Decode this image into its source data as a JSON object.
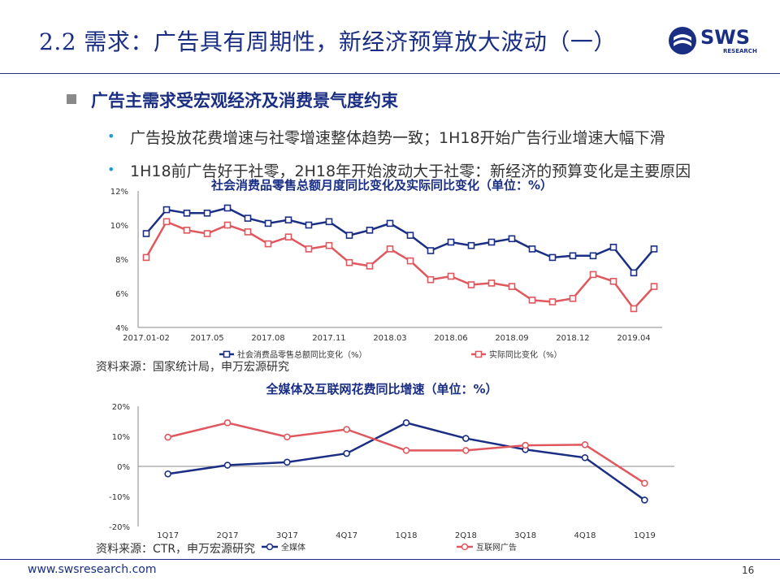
{
  "header": {
    "title": "2.2 需求：广告具有周期性，新经济预算放大波动（一）",
    "logo_text": "SWS",
    "logo_subtext": "RESEARCH"
  },
  "main": {
    "heading": "广告主需求受宏观经济及消费景气度约束",
    "bullets": [
      "广告投放花费增速与社零增速整体趋势一致；1H18开始广告行业增速大幅下滑",
      "1H18前广告好于社零，2H18年开始波动大于社零：新经济的预算变化是主要原因"
    ],
    "bullet_marker": "•",
    "captions": [
      "资料来源：国家统计局，申万宏源研究",
      "资料来源：CTR，申万宏源研究"
    ]
  },
  "footer": {
    "url": "www.swsresearch.com",
    "page": "16"
  },
  "colors": {
    "brand": "#1a2f84",
    "series_blue": "#1a2f84",
    "series_red": "#e0575d",
    "accent": "#1e9be0"
  },
  "chart_data": [
    {
      "type": "line",
      "title": "社会消费品零售总额月度同比变化及实际同比变化（单位：%）",
      "ylim": [
        4,
        12
      ],
      "yticks": [
        "4%",
        "6%",
        "8%",
        "10%",
        "12%"
      ],
      "ytick_values": [
        4,
        6,
        8,
        10,
        12
      ],
      "xtick_labels": [
        "2017.01-02",
        "2017.05",
        "2017.08",
        "2017.11",
        "2018.03",
        "2018.06",
        "2018.09",
        "2018.12",
        "2019.04"
      ],
      "xtick_indices": [
        0,
        3,
        6,
        9,
        12,
        15,
        18,
        21,
        24
      ],
      "point_count": 26,
      "legend_position": "bottom",
      "series": [
        {
          "name": "社会消费品零售总额同比变化（%）",
          "color": "#1a2f84",
          "values": [
            9.5,
            10.9,
            10.7,
            10.7,
            11.0,
            10.4,
            10.1,
            10.3,
            10.0,
            10.2,
            9.4,
            9.7,
            10.1,
            9.4,
            8.5,
            9.0,
            8.8,
            9.0,
            9.2,
            8.6,
            8.1,
            8.2,
            8.2,
            8.7,
            7.2,
            8.6
          ]
        },
        {
          "name": "实际同比变化（%）",
          "color": "#e0575d",
          "values": [
            8.1,
            10.2,
            9.7,
            9.5,
            10.0,
            9.6,
            8.9,
            9.3,
            8.6,
            8.8,
            7.8,
            7.6,
            8.6,
            7.9,
            6.8,
            7.0,
            6.5,
            6.6,
            6.4,
            5.6,
            5.5,
            5.7,
            7.1,
            6.7,
            5.1,
            6.4
          ]
        }
      ]
    },
    {
      "type": "line",
      "title": "全媒体及互联网花费同比增速（单位：%）",
      "ylim": [
        -20,
        20
      ],
      "yticks": [
        "-20%",
        "-10%",
        "0%",
        "10%",
        "20%"
      ],
      "ytick_values": [
        -20,
        -10,
        0,
        10,
        20
      ],
      "categories": [
        "1Q17",
        "2Q17",
        "3Q17",
        "4Q17",
        "1Q18",
        "2Q18",
        "3Q18",
        "4Q18",
        "1Q19"
      ],
      "legend_position": "bottom",
      "series": [
        {
          "name": "全媒体",
          "color": "#1a2f84",
          "values": [
            -2.5,
            0.4,
            1.4,
            4.3,
            14.5,
            9.3,
            5.6,
            2.9,
            -11.2
          ]
        },
        {
          "name": "互联网广告",
          "color": "#e0575d",
          "values": [
            9.7,
            14.5,
            9.8,
            12.3,
            5.3,
            5.3,
            7.0,
            7.2,
            -5.6
          ]
        }
      ]
    }
  ]
}
